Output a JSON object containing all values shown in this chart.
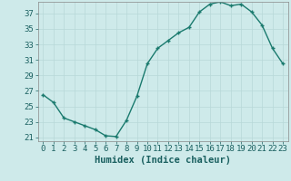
{
  "x": [
    0,
    1,
    2,
    3,
    4,
    5,
    6,
    7,
    8,
    9,
    10,
    11,
    12,
    13,
    14,
    15,
    16,
    17,
    18,
    19,
    20,
    21,
    22,
    23
  ],
  "y": [
    26.5,
    25.5,
    23.5,
    23.0,
    22.5,
    22.0,
    21.2,
    21.1,
    23.2,
    26.3,
    30.5,
    32.5,
    33.5,
    34.5,
    35.2,
    37.2,
    38.2,
    38.5,
    38.0,
    38.2,
    37.2,
    35.5,
    32.5,
    30.5
  ],
  "line_color": "#1a7a6e",
  "marker": "+",
  "marker_size": 3,
  "bg_color": "#ceeaea",
  "grid_color": "#b8d8d8",
  "xlabel": "Humidex (Indice chaleur)",
  "xlim": [
    -0.5,
    23.5
  ],
  "ylim": [
    20.5,
    38.5
  ],
  "yticks": [
    21,
    23,
    25,
    27,
    29,
    31,
    33,
    35,
    37
  ],
  "xticks": [
    0,
    1,
    2,
    3,
    4,
    5,
    6,
    7,
    8,
    9,
    10,
    11,
    12,
    13,
    14,
    15,
    16,
    17,
    18,
    19,
    20,
    21,
    22,
    23
  ],
  "xtick_labels": [
    "0",
    "1",
    "2",
    "3",
    "4",
    "5",
    "6",
    "7",
    "8",
    "9",
    "10",
    "11",
    "12",
    "13",
    "14",
    "15",
    "16",
    "17",
    "18",
    "19",
    "20",
    "21",
    "22",
    "23"
  ],
  "label_color": "#1a6060",
  "tick_color": "#1a6060",
  "xlabel_fontsize": 7.5,
  "tick_fontsize": 6.5,
  "linewidth": 1.0,
  "marker_color": "#1a7a6e",
  "spine_color": "#888888",
  "grid_linewidth": 0.5
}
